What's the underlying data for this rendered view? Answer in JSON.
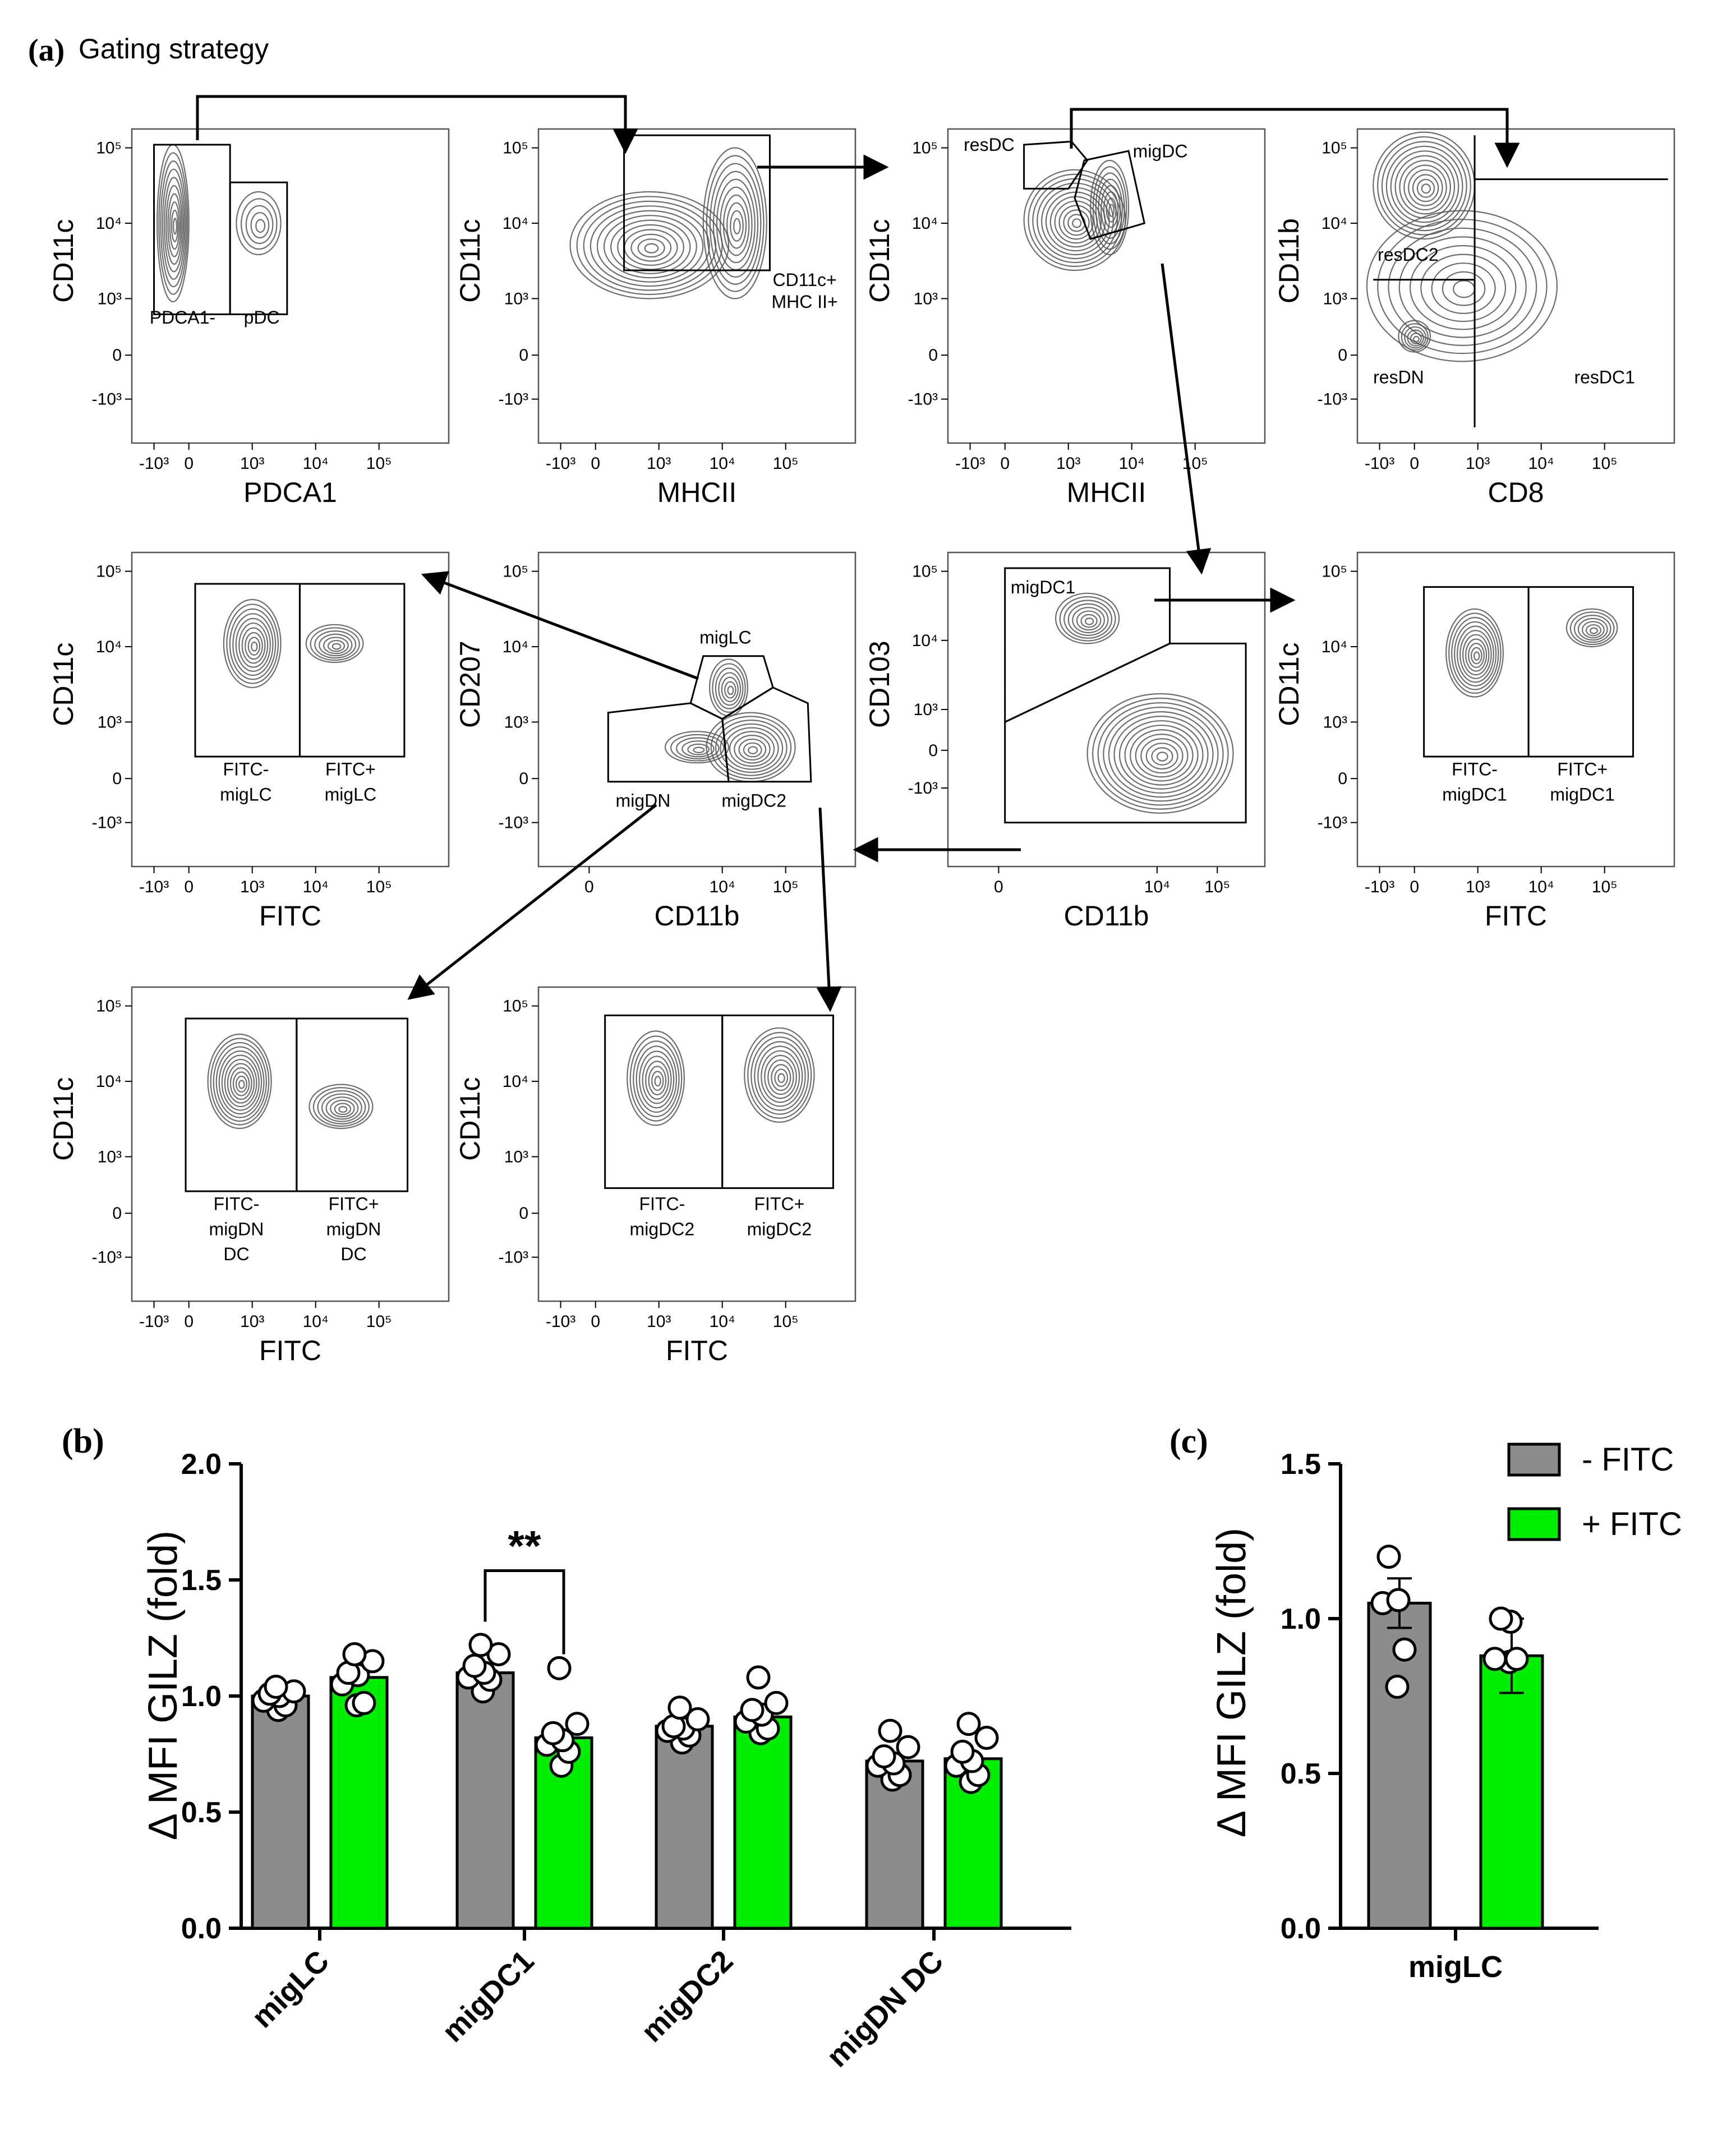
{
  "panel_a": {
    "letter": "(a)",
    "title": "Gating strategy",
    "ticks": {
      "neg3": "-10³",
      "zero": "0",
      "e3": "10³",
      "e4": "10⁴",
      "e5": "10⁵"
    },
    "plots": [
      {
        "ylabel": "CD11c",
        "xlabel": "PDCA1",
        "gates": [
          "PDCA1-",
          "pDC"
        ]
      },
      {
        "ylabel": "CD11c",
        "xlabel": "MHCII",
        "gates": [
          "CD11c+",
          "MHC II+"
        ]
      },
      {
        "ylabel": "CD11c",
        "xlabel": "MHCII",
        "gates": [
          "resDC",
          "migDC"
        ]
      },
      {
        "ylabel": "CD11b",
        "xlabel": "CD8",
        "gates": [
          "resDC2",
          "resDN",
          "resDC1"
        ]
      },
      {
        "ylabel": "CD11c",
        "xlabel": "FITC",
        "gates": [
          "FITC-",
          "migLC",
          "FITC+",
          "migLC"
        ]
      },
      {
        "ylabel": "CD207",
        "xlabel": "CD11b",
        "gates": [
          "migLC",
          "migDN",
          "migDC2"
        ]
      },
      {
        "ylabel": "CD103",
        "xlabel": "CD11b",
        "gates": [
          "migDC1"
        ]
      },
      {
        "ylabel": "CD11c",
        "xlabel": "FITC",
        "gates": [
          "FITC-",
          "migDC1",
          "FITC+",
          "migDC1"
        ]
      },
      {
        "ylabel": "CD11c",
        "xlabel": "FITC",
        "gates": [
          "FITC-",
          "migDN",
          "DC",
          "FITC+",
          "migDN",
          "DC"
        ]
      },
      {
        "ylabel": "CD11c",
        "xlabel": "FITC",
        "gates": [
          "FITC-",
          "migDC2",
          "FITC+",
          "migDC2"
        ]
      }
    ]
  },
  "panel_b": {
    "letter": "(b)",
    "significance": "**"
  },
  "panel_c": {
    "letter": "(c)"
  },
  "colors": {
    "minus_fitc": "#8c8c8c",
    "plus_fitc": "#00ee00",
    "contour": "#555555"
  },
  "chart_data": [
    {
      "type": "bar",
      "title": "",
      "ylabel": "Δ MFI GILZ (fold)",
      "xlabel": "",
      "ylim": [
        0,
        2.0
      ],
      "yticks": [
        "0.0",
        "0.5",
        "1.0",
        "1.5",
        "2.0"
      ],
      "categories": [
        "migLC",
        "migDC1",
        "migDC2",
        "migDN DC"
      ],
      "series": [
        {
          "name": "- FITC",
          "values": [
            1.0,
            1.1,
            0.87,
            0.72
          ],
          "points": [
            [
              0.94,
              0.96,
              0.98,
              1.0,
              1.01,
              1.02,
              1.04
            ],
            [
              1.02,
              1.07,
              1.08,
              1.1,
              1.13,
              1.18,
              1.22
            ],
            [
              0.8,
              0.83,
              0.85,
              0.86,
              0.87,
              0.9,
              0.95
            ],
            [
              0.64,
              0.66,
              0.7,
              0.71,
              0.74,
              0.78,
              0.85
            ]
          ]
        },
        {
          "name": "+ FITC",
          "values": [
            1.08,
            0.82,
            0.91,
            0.73
          ],
          "points": [
            [
              0.96,
              0.97,
              1.05,
              1.09,
              1.1,
              1.15,
              1.18
            ],
            [
              0.7,
              0.76,
              0.79,
              0.81,
              0.84,
              0.88,
              1.12
            ],
            [
              0.84,
              0.86,
              0.89,
              0.92,
              0.94,
              0.97,
              1.08
            ],
            [
              0.63,
              0.66,
              0.7,
              0.72,
              0.76,
              0.82,
              0.88
            ]
          ]
        }
      ],
      "annotation": {
        "label": "**",
        "between": [
          "migDC1 - FITC",
          "migDC1 + FITC"
        ]
      }
    },
    {
      "type": "bar",
      "title": "",
      "ylabel": "Δ MFI GILZ (fold)",
      "xlabel": "",
      "ylim": [
        0,
        1.5
      ],
      "yticks": [
        "0.0",
        "0.5",
        "1.0",
        "1.5"
      ],
      "categories": [
        "migLC"
      ],
      "series": [
        {
          "name": "- FITC",
          "values": [
            1.05
          ],
          "error": 0.08,
          "points": [
            [
              0.78,
              0.9,
              1.05,
              1.06,
              1.2
            ]
          ]
        },
        {
          "name": "+ FITC",
          "values": [
            0.88
          ],
          "error": 0.12,
          "points": [
            [
              0.86,
              0.87,
              0.87,
              0.99,
              1.0
            ]
          ]
        }
      ],
      "legend": {
        "position": "top-right",
        "entries": [
          "- FITC",
          "+ FITC"
        ]
      }
    }
  ]
}
